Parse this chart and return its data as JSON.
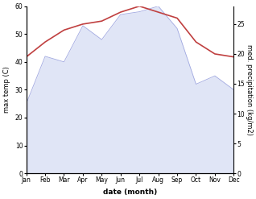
{
  "months": [
    "Jan",
    "Feb",
    "Mar",
    "Apr",
    "May",
    "Jun",
    "Jul",
    "Aug",
    "Sep",
    "Oct",
    "Nov",
    "Dec"
  ],
  "temp_values": [
    25,
    42,
    40,
    53,
    48,
    57,
    58,
    60,
    52,
    32,
    35,
    30
  ],
  "precip_values": [
    19.5,
    22,
    24,
    25,
    25.5,
    27,
    28,
    27,
    26,
    22,
    20,
    19.5
  ],
  "temp_color_fill": "#c8d0f0",
  "temp_color_line": "#a0a8e0",
  "precip_color": "#c04040",
  "temp_ylim": [
    0,
    60
  ],
  "precip_ylim": [
    0,
    28
  ],
  "precip_yticks": [
    0,
    5,
    10,
    15,
    20,
    25
  ],
  "temp_yticks": [
    0,
    10,
    20,
    30,
    40,
    50,
    60
  ],
  "xlabel": "date (month)",
  "ylabel_left": "max temp (C)",
  "ylabel_right": "med. precipitation (kg/m2)",
  "bg_color": "#ffffff",
  "fill_alpha": 0.55
}
